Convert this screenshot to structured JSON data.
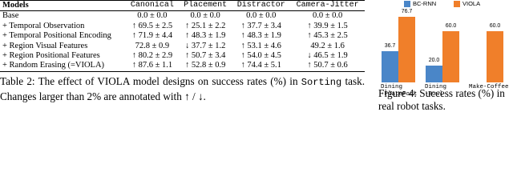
{
  "table": {
    "header": [
      "Models",
      "Canonical",
      "Placement",
      "Distractor",
      "Camera-Jitter"
    ],
    "rows": [
      [
        "Base",
        "0.0 ± 0.0",
        "0.0 ± 0.0",
        "0.0 ± 0.0",
        "0.0 ± 0.0"
      ],
      [
        "+ Temporal Observation",
        "↑ 69.5 ± 2.5",
        "↑ 25.1 ± 2.2",
        "↑ 37.7 ± 3.4",
        "↑ 39.9 ± 1.5"
      ],
      [
        "+ Temporal Positional Encoding",
        "↑ 71.9 ± 4.4",
        "↑ 48.3 ± 1.9",
        "↑ 48.3 ± 1.9",
        "↑ 45.3 ± 2.5"
      ],
      [
        "+ Region Visual Features",
        "72.8 ± 0.9",
        "↓ 37.7 ± 1.2",
        "↑ 53.1 ± 4.6",
        "49.2 ± 1.6"
      ],
      [
        "+ Region Positional Features",
        "↑ 80.2 ± 2.9",
        "↑ 50.7 ± 3.4",
        "↑ 54.0 ± 4.5",
        "↓ 46.5 ± 1.9"
      ],
      [
        "+ Random Erasing (=VIOLA)",
        "↑ 87.6 ± 1.1",
        "↑ 52.8 ± 0.9",
        "↑ 74.4 ± 5.1",
        "↑ 50.7 ± 0.6"
      ]
    ]
  },
  "table_caption": [
    "Table 2: The effect of VIOLA model designs on success rates (%) in ",
    "Sorting",
    " task. Changes larger than 2% are annotated with ↑ / ↓."
  ],
  "chart_data": {
    "type": "bar",
    "categories": [
      "Dining\n-PlateFork",
      "Dining\n-Bowl",
      "Make-Coffee"
    ],
    "series": [
      {
        "name": "BC-RNN",
        "color": "#4a86c8",
        "values": [
          36.7,
          20.0,
          0
        ],
        "value_labels": [
          "36.7",
          "20.0",
          null
        ]
      },
      {
        "name": "VIOLA",
        "color": "#f07f2a",
        "values": [
          76.7,
          60.0,
          60.0
        ],
        "value_labels": [
          "76.7",
          "60.0",
          "60.0"
        ]
      }
    ],
    "ylim": [
      0,
      80
    ]
  },
  "figure_caption": "Figure 4: Success rates (%) in real robot tasks."
}
